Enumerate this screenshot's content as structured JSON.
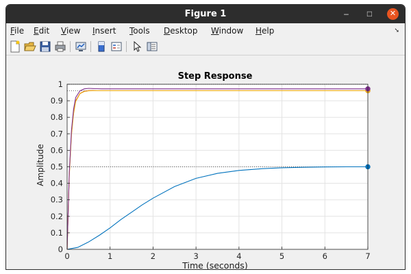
{
  "window": {
    "title": "Figure 1",
    "minimize_label": "–",
    "maximize_label": "□",
    "close_label": "✕"
  },
  "menubar": {
    "items": [
      {
        "mnemonic": "F",
        "rest": "ile"
      },
      {
        "mnemonic": "E",
        "rest": "dit"
      },
      {
        "mnemonic": "V",
        "rest": "iew"
      },
      {
        "mnemonic": "I",
        "rest": "nsert"
      },
      {
        "mnemonic": "T",
        "rest": "ools"
      },
      {
        "mnemonic": "D",
        "rest": "esktop"
      },
      {
        "mnemonic": "W",
        "rest": "indow"
      },
      {
        "mnemonic": "H",
        "rest": "elp"
      }
    ],
    "overflow_icon": "arrow-down-right-icon"
  },
  "toolbar": {
    "icons": [
      "new-figure-icon",
      "open-file-icon",
      "save-icon",
      "print-icon",
      "link-plot-icon",
      "colorbar-icon",
      "legend-icon",
      "edit-plot-arrow-icon",
      "property-inspector-icon"
    ]
  },
  "chart_data": {
    "type": "line",
    "title": "Step Response",
    "xlabel": "Time (seconds)",
    "ylabel": "Amplitude",
    "xlim": [
      0,
      7
    ],
    "ylim": [
      0,
      1
    ],
    "xticks": [
      0,
      1,
      2,
      3,
      4,
      5,
      6,
      7
    ],
    "yticks": [
      0,
      0.1,
      0.2,
      0.3,
      0.4,
      0.5,
      0.6,
      0.7,
      0.8,
      0.9,
      1
    ],
    "grid": true,
    "series": [
      {
        "color": "#0072BD",
        "x": [
          0,
          0.25,
          0.5,
          0.75,
          1,
          1.25,
          1.5,
          1.75,
          2,
          2.5,
          3,
          3.5,
          4,
          4.5,
          5,
          5.5,
          6,
          6.5,
          7
        ],
        "y": [
          0,
          0.012,
          0.045,
          0.085,
          0.13,
          0.18,
          0.225,
          0.27,
          0.31,
          0.38,
          0.43,
          0.46,
          0.478,
          0.488,
          0.494,
          0.497,
          0.499,
          0.5,
          0.5
        ],
        "final_value": 0.5
      },
      {
        "color": "#D95319",
        "x": [
          0,
          0.05,
          0.1,
          0.15,
          0.2,
          0.3,
          0.4,
          0.5,
          0.6,
          0.7,
          0.8,
          1,
          2,
          7
        ],
        "y": [
          0,
          0.45,
          0.7,
          0.83,
          0.9,
          0.945,
          0.958,
          0.962,
          0.962,
          0.961,
          0.961,
          0.961,
          0.961,
          0.961
        ],
        "final_value": 0.961
      },
      {
        "color": "#EDB120",
        "x": [
          0,
          0.05,
          0.1,
          0.15,
          0.2,
          0.3,
          0.4,
          0.5,
          0.6,
          0.7,
          0.8,
          1,
          2,
          7
        ],
        "y": [
          0,
          0.44,
          0.69,
          0.82,
          0.895,
          0.943,
          0.956,
          0.96,
          0.961,
          0.961,
          0.961,
          0.961,
          0.961,
          0.961
        ],
        "final_value": 0.961
      },
      {
        "color": "#7E2F8E",
        "x": [
          0,
          0.05,
          0.1,
          0.15,
          0.2,
          0.3,
          0.4,
          0.5,
          0.6,
          0.7,
          0.8,
          1,
          2,
          7
        ],
        "y": [
          0,
          0.46,
          0.72,
          0.85,
          0.92,
          0.96,
          0.972,
          0.975,
          0.974,
          0.973,
          0.972,
          0.972,
          0.972,
          0.972
        ],
        "final_value": 0.972
      }
    ],
    "steady_state_reference_lines": [
      1.0,
      0.961,
      0.5
    ]
  }
}
